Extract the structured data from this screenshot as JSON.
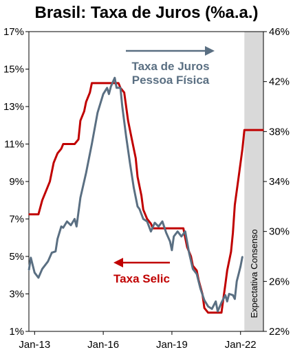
{
  "chart_data": {
    "type": "line",
    "title": "Brasil: Taxa de Juros (%a.a.)",
    "xlabel": "",
    "ylabel": "",
    "x_range": [
      "2012-10",
      "2023-01"
    ],
    "x_ticks": [
      "Jan-13",
      "Jan-16",
      "Jan-19",
      "Jan-22"
    ],
    "y_left_range": [
      1,
      17
    ],
    "y_left_ticks": [
      "1%",
      "3%",
      "5%",
      "7%",
      "9%",
      "11%",
      "13%",
      "15%",
      "17%"
    ],
    "y_right_range": [
      22,
      46
    ],
    "y_right_ticks": [
      "22%",
      "26%",
      "30%",
      "34%",
      "38%",
      "42%",
      "46%"
    ],
    "grid": false,
    "shaded_region": {
      "from": "2022-03",
      "to": "2023-01",
      "label": "Expectativa Consenso",
      "color": "#d9d9d9"
    },
    "annotations": [
      {
        "text": "Taxa de Juros",
        "series": "Taxa de Juros Pessoa Física"
      },
      {
        "text": "Pessoa Física",
        "series": "Taxa de Juros Pessoa Física"
      },
      {
        "text": "Taxa Selic",
        "series": "Taxa Selic"
      }
    ],
    "series": [
      {
        "name": "Taxa Selic",
        "axis": "left",
        "color": "#c00000",
        "points": [
          [
            "2012-10",
            7.25
          ],
          [
            "2013-03",
            7.25
          ],
          [
            "2013-05",
            8.0
          ],
          [
            "2013-07",
            8.5
          ],
          [
            "2013-09",
            9.0
          ],
          [
            "2013-11",
            10.0
          ],
          [
            "2014-01",
            10.5
          ],
          [
            "2014-03",
            10.75
          ],
          [
            "2014-04",
            11.0
          ],
          [
            "2014-10",
            11.0
          ],
          [
            "2014-12",
            11.25
          ],
          [
            "2015-01",
            12.25
          ],
          [
            "2015-03",
            12.75
          ],
          [
            "2015-04",
            13.25
          ],
          [
            "2015-06",
            13.75
          ],
          [
            "2015-07",
            14.25
          ],
          [
            "2016-09",
            14.25
          ],
          [
            "2016-10",
            14.0
          ],
          [
            "2016-12",
            13.75
          ],
          [
            "2017-01",
            13.0
          ],
          [
            "2017-02",
            12.25
          ],
          [
            "2017-04",
            11.25
          ],
          [
            "2017-06",
            10.25
          ],
          [
            "2017-07",
            9.25
          ],
          [
            "2017-09",
            8.25
          ],
          [
            "2017-10",
            7.5
          ],
          [
            "2017-12",
            7.0
          ],
          [
            "2018-02",
            6.75
          ],
          [
            "2018-03",
            6.5
          ],
          [
            "2019-07",
            6.5
          ],
          [
            "2019-08",
            6.0
          ],
          [
            "2019-09",
            5.5
          ],
          [
            "2019-11",
            5.0
          ],
          [
            "2019-12",
            4.5
          ],
          [
            "2020-02",
            4.25
          ],
          [
            "2020-03",
            3.75
          ],
          [
            "2020-05",
            3.0
          ],
          [
            "2020-06",
            2.25
          ],
          [
            "2020-08",
            2.0
          ],
          [
            "2021-03",
            2.0
          ],
          [
            "2021-04",
            2.75
          ],
          [
            "2021-05",
            3.5
          ],
          [
            "2021-06",
            4.25
          ],
          [
            "2021-08",
            5.25
          ],
          [
            "2021-09",
            6.25
          ],
          [
            "2021-10",
            7.75
          ],
          [
            "2021-12",
            9.25
          ],
          [
            "2022-02",
            10.75
          ],
          [
            "2022-03",
            11.75
          ],
          [
            "2023-01",
            11.75
          ]
        ]
      },
      {
        "name": "Taxa de Juros Pessoa Física",
        "axis": "right",
        "color": "#5a6f82",
        "points": [
          [
            "2012-10",
            26.9
          ],
          [
            "2012-11",
            27.9
          ],
          [
            "2013-01",
            26.7
          ],
          [
            "2013-03",
            26.3
          ],
          [
            "2013-05",
            27.0
          ],
          [
            "2013-08",
            27.6
          ],
          [
            "2013-10",
            28.3
          ],
          [
            "2013-12",
            28.4
          ],
          [
            "2014-01",
            29.4
          ],
          [
            "2014-03",
            30.4
          ],
          [
            "2014-04",
            30.3
          ],
          [
            "2014-06",
            30.8
          ],
          [
            "2014-08",
            30.5
          ],
          [
            "2014-10",
            31.0
          ],
          [
            "2014-11",
            30.4
          ],
          [
            "2015-01",
            32.7
          ],
          [
            "2015-04",
            34.7
          ],
          [
            "2015-07",
            37.0
          ],
          [
            "2015-10",
            39.5
          ],
          [
            "2016-01",
            41.0
          ],
          [
            "2016-03",
            41.5
          ],
          [
            "2016-04",
            41.0
          ],
          [
            "2016-05",
            41.6
          ],
          [
            "2016-07",
            42.3
          ],
          [
            "2016-08",
            41.5
          ],
          [
            "2016-10",
            41.5
          ],
          [
            "2016-11",
            40.0
          ],
          [
            "2017-01",
            37.6
          ],
          [
            "2017-03",
            35.5
          ],
          [
            "2017-05",
            33.5
          ],
          [
            "2017-07",
            32.0
          ],
          [
            "2017-08",
            31.8
          ],
          [
            "2017-10",
            31.0
          ],
          [
            "2017-12",
            30.8
          ],
          [
            "2018-02",
            30.0
          ],
          [
            "2018-04",
            30.7
          ],
          [
            "2018-06",
            30.4
          ],
          [
            "2018-08",
            30.8
          ],
          [
            "2018-10",
            29.9
          ],
          [
            "2018-12",
            29.2
          ],
          [
            "2019-01",
            28.5
          ],
          [
            "2019-02",
            29.6
          ],
          [
            "2019-04",
            30.0
          ],
          [
            "2019-06",
            29.6
          ],
          [
            "2019-08",
            30.0
          ],
          [
            "2019-10",
            28.3
          ],
          [
            "2019-12",
            27.0
          ],
          [
            "2020-02",
            26.6
          ],
          [
            "2020-04",
            25.4
          ],
          [
            "2020-06",
            24.5
          ],
          [
            "2020-08",
            24.0
          ],
          [
            "2020-10",
            23.8
          ],
          [
            "2020-12",
            24.4
          ],
          [
            "2021-01",
            23.6
          ],
          [
            "2021-03",
            24.3
          ],
          [
            "2021-05",
            24.9
          ],
          [
            "2021-06",
            24.4
          ],
          [
            "2021-07",
            25.0
          ],
          [
            "2021-09",
            24.9
          ],
          [
            "2021-10",
            24.6
          ],
          [
            "2021-11",
            26.0
          ],
          [
            "2021-12",
            26.6
          ],
          [
            "2022-01",
            27.2
          ],
          [
            "2022-02",
            28.0
          ]
        ]
      }
    ]
  }
}
